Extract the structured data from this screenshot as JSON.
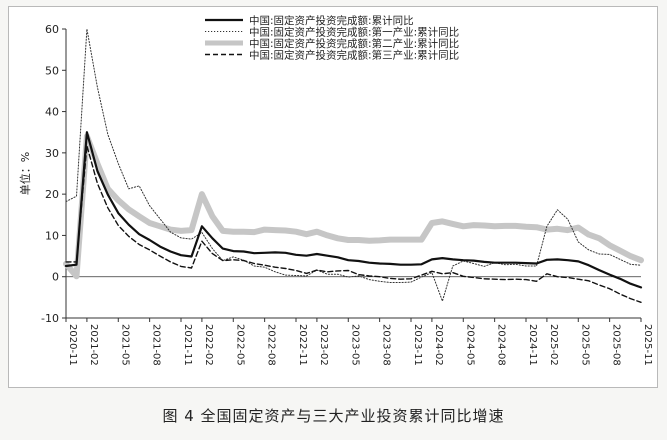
{
  "caption": "图 4  全国固定资产与三大产业投资累计同比增速",
  "chart_data": {
    "type": "line",
    "ylabel": "单位：%",
    "ylim": [
      -10,
      60
    ],
    "yticks": [
      -10,
      0,
      10,
      20,
      30,
      40,
      50,
      60
    ],
    "grid": false,
    "legend_position": "top",
    "x": [
      "2020-11",
      "2020-12",
      "2021-02",
      "2021-03",
      "2021-04",
      "2021-05",
      "2021-06",
      "2021-07",
      "2021-08",
      "2021-09",
      "2021-10",
      "2021-11",
      "2021-12",
      "2022-02",
      "2022-03",
      "2022-04",
      "2022-05",
      "2022-06",
      "2022-07",
      "2022-08",
      "2022-09",
      "2022-10",
      "2022-11",
      "2022-12",
      "2023-02",
      "2023-03",
      "2023-04",
      "2023-05",
      "2023-06",
      "2023-07",
      "2023-08",
      "2023-09",
      "2023-10",
      "2023-11",
      "2023-12",
      "2024-02",
      "2024-03",
      "2024-04",
      "2024-05",
      "2024-06",
      "2024-07",
      "2024-08",
      "2024-09",
      "2024-10",
      "2024-11",
      "2024-12",
      "2025-02",
      "2025-03",
      "2025-04",
      "2025-05",
      "2025-06",
      "2025-07",
      "2025-08",
      "2025-09",
      "2025-10",
      "2025-11"
    ],
    "xtick_labels": [
      "2020-11",
      "2021-02",
      "2021-05",
      "2021-08",
      "2021-11",
      "2022-02",
      "2022-05",
      "2022-08",
      "2022-11",
      "2023-02",
      "2023-05",
      "2023-08",
      "2023-11",
      "2024-02",
      "2024-05",
      "2024-08",
      "2024-11",
      "2025-02",
      "2025-05",
      "2025-08",
      "2025-11"
    ],
    "series": [
      {
        "name": "中国:固定资产投资完成额:累计同比",
        "style": "solid",
        "color": "#111111",
        "values": [
          2.6,
          2.9,
          35.0,
          25.6,
          19.9,
          15.4,
          12.6,
          10.3,
          8.9,
          7.3,
          6.1,
          5.2,
          4.9,
          12.2,
          9.3,
          6.8,
          6.2,
          6.1,
          5.7,
          5.8,
          5.9,
          5.8,
          5.3,
          5.1,
          5.5,
          5.1,
          4.7,
          4.0,
          3.8,
          3.4,
          3.2,
          3.1,
          2.9,
          2.9,
          3.0,
          4.2,
          4.5,
          4.2,
          4.0,
          3.9,
          3.6,
          3.4,
          3.4,
          3.4,
          3.3,
          3.2,
          4.1,
          4.2,
          4.0,
          3.7,
          2.8,
          1.6,
          0.5,
          -0.5,
          -1.7,
          -2.6
        ]
      },
      {
        "name": "中国:固定资产投资完成额:第一产业:累计同比",
        "style": "dotted",
        "color": "#333333",
        "values": [
          18.2,
          19.5,
          60.0,
          45.9,
          34.5,
          27.4,
          21.3,
          22.0,
          17.2,
          14.0,
          10.8,
          9.4,
          9.1,
          10.7,
          6.8,
          3.9,
          4.8,
          4.0,
          2.6,
          2.3,
          1.2,
          0.4,
          0.3,
          0.2,
          1.6,
          0.6,
          0.6,
          -0.1,
          0.2,
          -0.7,
          -1.1,
          -1.4,
          -1.4,
          -1.3,
          -0.1,
          1.0,
          -5.9,
          2.6,
          3.8,
          3.2,
          2.5,
          3.4,
          2.9,
          3.0,
          2.6,
          2.6,
          12.2,
          16.2,
          13.9,
          8.4,
          6.5,
          5.5,
          5.4,
          4.2,
          3.0,
          2.8
        ]
      },
      {
        "name": "中国:固定资产投资完成额:第二产业:累计同比",
        "style": "thick",
        "color": "#c6c6c6",
        "values": [
          3.1,
          0.1,
          34.0,
          27.4,
          21.3,
          18.5,
          16.3,
          14.6,
          13.0,
          12.2,
          11.4,
          11.1,
          11.3,
          20.0,
          14.6,
          11.1,
          10.9,
          10.9,
          10.8,
          11.4,
          11.3,
          11.2,
          10.9,
          10.3,
          10.9,
          10.0,
          9.3,
          8.9,
          8.9,
          8.7,
          8.8,
          9.0,
          9.0,
          9.0,
          9.0,
          13.0,
          13.4,
          12.8,
          12.2,
          12.5,
          12.4,
          12.2,
          12.3,
          12.3,
          12.1,
          12.0,
          11.4,
          11.6,
          11.3,
          11.9,
          10.2,
          9.3,
          7.6,
          6.3,
          5.0,
          4.0
        ]
      },
      {
        "name": "中国:固定资产投资完成额:第三产业:累计同比",
        "style": "dashed",
        "color": "#111111",
        "values": [
          3.6,
          3.6,
          31.7,
          22.6,
          16.7,
          12.4,
          9.8,
          7.8,
          6.5,
          5.0,
          3.6,
          2.5,
          2.1,
          8.6,
          5.6,
          3.9,
          4.1,
          3.9,
          3.2,
          2.8,
          2.3,
          2.0,
          1.5,
          0.8,
          1.6,
          1.2,
          1.4,
          1.5,
          0.5,
          0.2,
          0.0,
          -0.4,
          -0.6,
          -0.5,
          0.4,
          1.3,
          0.7,
          1.0,
          0.1,
          -0.2,
          -0.5,
          -0.6,
          -0.7,
          -0.6,
          -0.7,
          -1.1,
          0.7,
          0.0,
          -0.2,
          -0.6,
          -1.0,
          -2.0,
          -2.9,
          -4.2,
          -5.3,
          -6.2
        ]
      }
    ]
  }
}
